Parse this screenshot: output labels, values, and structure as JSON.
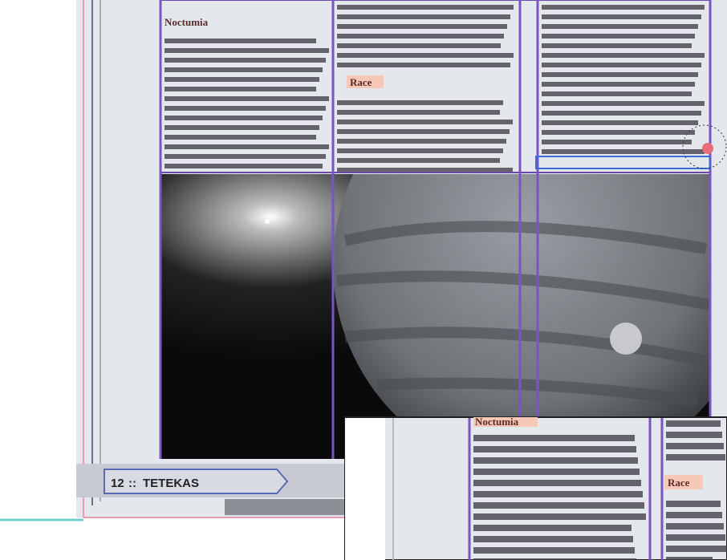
{
  "heading_1": "Noctumia",
  "heading_2": "Race",
  "folio": {
    "number": "12",
    "running_head": "TETEKAS"
  },
  "inset": {
    "heading_1": "Noctumia",
    "heading_2": "Race"
  }
}
